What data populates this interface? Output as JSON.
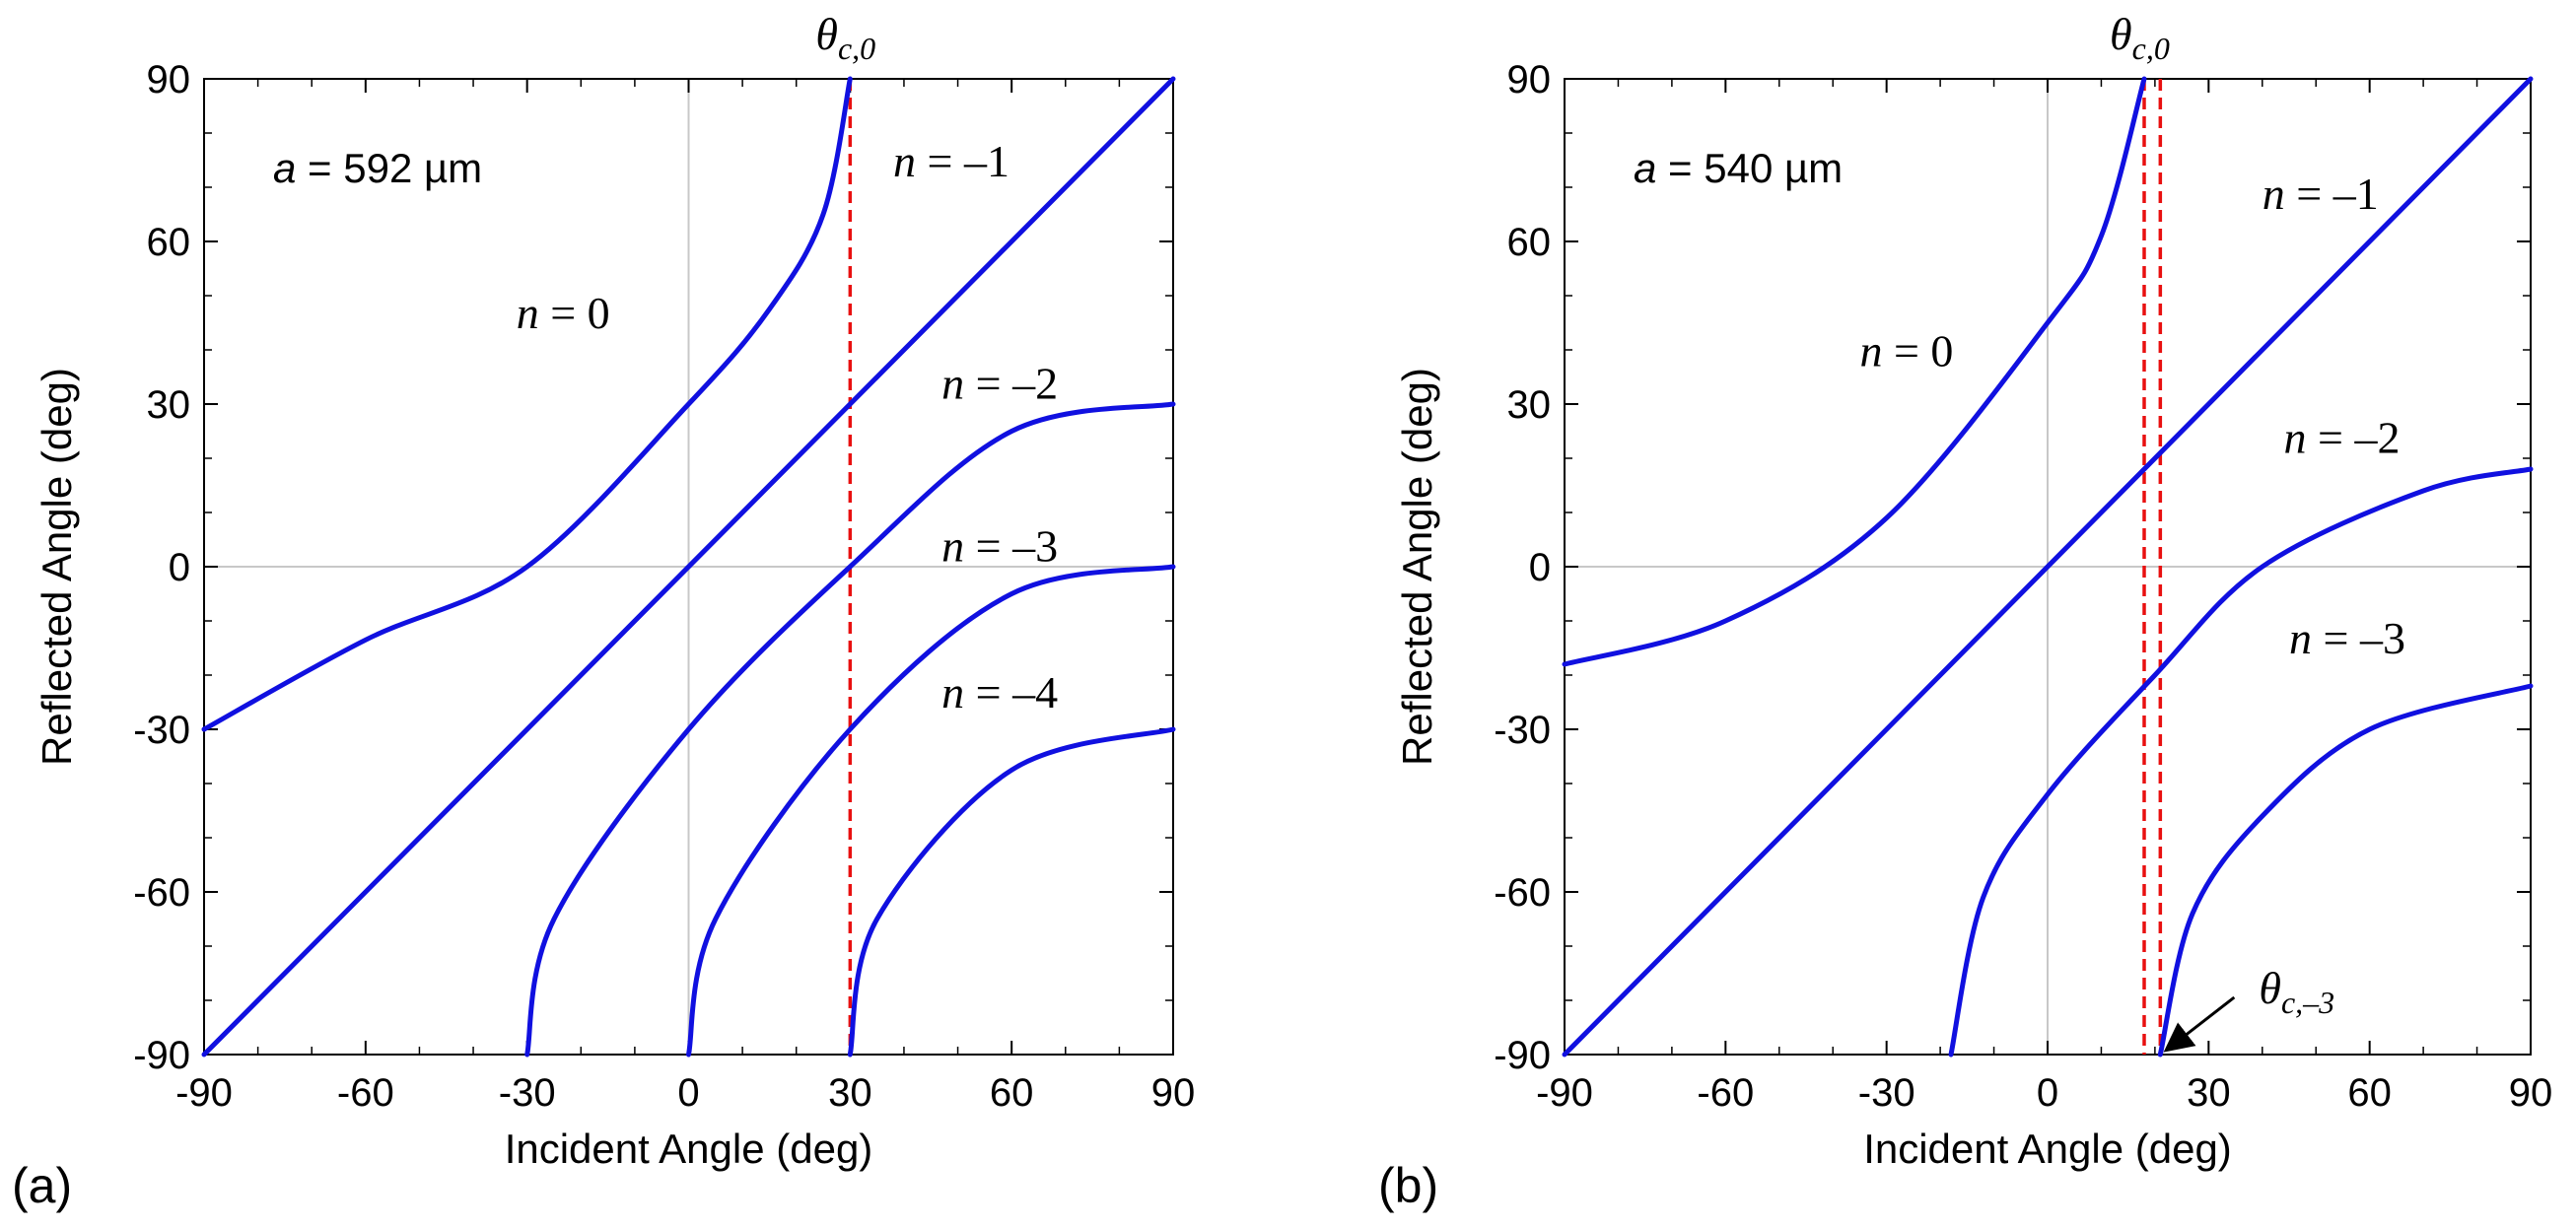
{
  "chart_data": [
    {
      "type": "line",
      "panel": "(a)",
      "xlabel": "Incident Angle (deg)",
      "ylabel": "Reflected Angle (deg)",
      "xlim": [
        -90,
        90
      ],
      "ylim": [
        -90,
        90
      ],
      "xticks": [
        -90,
        -60,
        -30,
        0,
        30,
        60,
        90
      ],
      "yticks": [
        -90,
        -60,
        -30,
        0,
        30,
        60,
        90
      ],
      "grid": "zero lines only",
      "param_var": "a",
      "param_text": " = 592 µm",
      "series": [
        {
          "name": "n = 0",
          "order": 0,
          "n_var": "n",
          "n_text": " = 0",
          "label_at": [
            -32,
            44
          ],
          "values": [
            [
              -90,
              -30
            ],
            [
              -60,
              -13.5
            ],
            [
              -30,
              0
            ],
            [
              0,
              30
            ],
            [
              15,
              47.5
            ],
            [
              25,
              65
            ],
            [
              30,
              90
            ]
          ]
        },
        {
          "name": "n = –1",
          "order": -1,
          "n_var": "n",
          "n_text": " = –1",
          "label_at": [
            38,
            72
          ],
          "values": [
            [
              -90,
              -90
            ],
            [
              90,
              90
            ]
          ]
        },
        {
          "name": "n = –2",
          "order": -2,
          "n_var": "n",
          "n_text": " = –2",
          "label_at": [
            47,
            31
          ],
          "values": [
            [
              -30,
              -90
            ],
            [
              -25,
              -65
            ],
            [
              0,
              -30
            ],
            [
              30,
              0
            ],
            [
              60,
              25
            ],
            [
              90,
              30
            ]
          ]
        },
        {
          "name": "n = –3",
          "order": -3,
          "n_var": "n",
          "n_text": " = –3",
          "label_at": [
            47,
            1
          ],
          "values": [
            [
              0,
              -90
            ],
            [
              5,
              -65
            ],
            [
              30,
              -30
            ],
            [
              60,
              -5
            ],
            [
              90,
              0
            ]
          ]
        },
        {
          "name": "n = –4",
          "order": -4,
          "n_var": "n",
          "n_text": " = –4",
          "label_at": [
            47,
            -26
          ],
          "values": [
            [
              30,
              -90
            ],
            [
              35,
              -65
            ],
            [
              60,
              -37.5
            ],
            [
              90,
              -30
            ]
          ]
        }
      ],
      "critical_lines": [
        {
          "theta_var": "θ",
          "subscript": "c,0",
          "x": 30
        }
      ]
    },
    {
      "type": "line",
      "panel": "(b)",
      "xlabel": "Incident Angle (deg)",
      "ylabel": "Reflected Angle (deg)",
      "xlim": [
        -90,
        90
      ],
      "ylim": [
        -90,
        90
      ],
      "xticks": [
        -90,
        -60,
        -30,
        0,
        30,
        60,
        90
      ],
      "yticks": [
        -90,
        -60,
        -30,
        0,
        30,
        60,
        90
      ],
      "grid": "zero lines only",
      "param_var": "a",
      "param_text": " = 540 µm",
      "series": [
        {
          "name": "n = 0",
          "order": 0,
          "n_var": "n",
          "n_text": " = 0",
          "label_at": [
            -35,
            37
          ],
          "values": [
            [
              -90,
              -18
            ],
            [
              -60,
              -10
            ],
            [
              -30,
              9
            ],
            [
              0,
              45
            ],
            [
              10,
              61
            ],
            [
              18,
              90
            ]
          ]
        },
        {
          "name": "n = –1",
          "order": -1,
          "n_var": "n",
          "n_text": " = –1",
          "label_at": [
            40,
            66
          ],
          "values": [
            [
              -90,
              -90
            ],
            [
              90,
              90
            ]
          ]
        },
        {
          "name": "n = –2",
          "order": -2,
          "n_var": "n",
          "n_text": " = –2",
          "label_at": [
            44,
            21
          ],
          "values": [
            [
              -18,
              -90
            ],
            [
              -12,
              -61
            ],
            [
              0,
              -42
            ],
            [
              20,
              -20
            ],
            [
              40,
              0
            ],
            [
              70,
              14
            ],
            [
              90,
              18
            ]
          ]
        },
        {
          "name": "n = –3",
          "order": -3,
          "n_var": "n",
          "n_text": " = –3",
          "label_at": [
            45,
            -16
          ],
          "values": [
            [
              21,
              -90
            ],
            [
              27,
              -64
            ],
            [
              40,
              -46
            ],
            [
              60,
              -30
            ],
            [
              90,
              -22
            ]
          ]
        }
      ],
      "critical_lines": [
        {
          "theta_var": "θ",
          "subscript": "c,0",
          "x": 18
        },
        {
          "theta_var": "θ",
          "subscript": "c,–3",
          "x": 21
        }
      ]
    }
  ],
  "panel_b_arrow": {
    "target": [
      21,
      -90
    ],
    "label": "θc,–3"
  },
  "colors": {
    "curve": "#1010e0",
    "critical_line": "#e81010",
    "axis": "#000000",
    "zero_line": "#c8c8c8",
    "background": "#ffffff"
  }
}
